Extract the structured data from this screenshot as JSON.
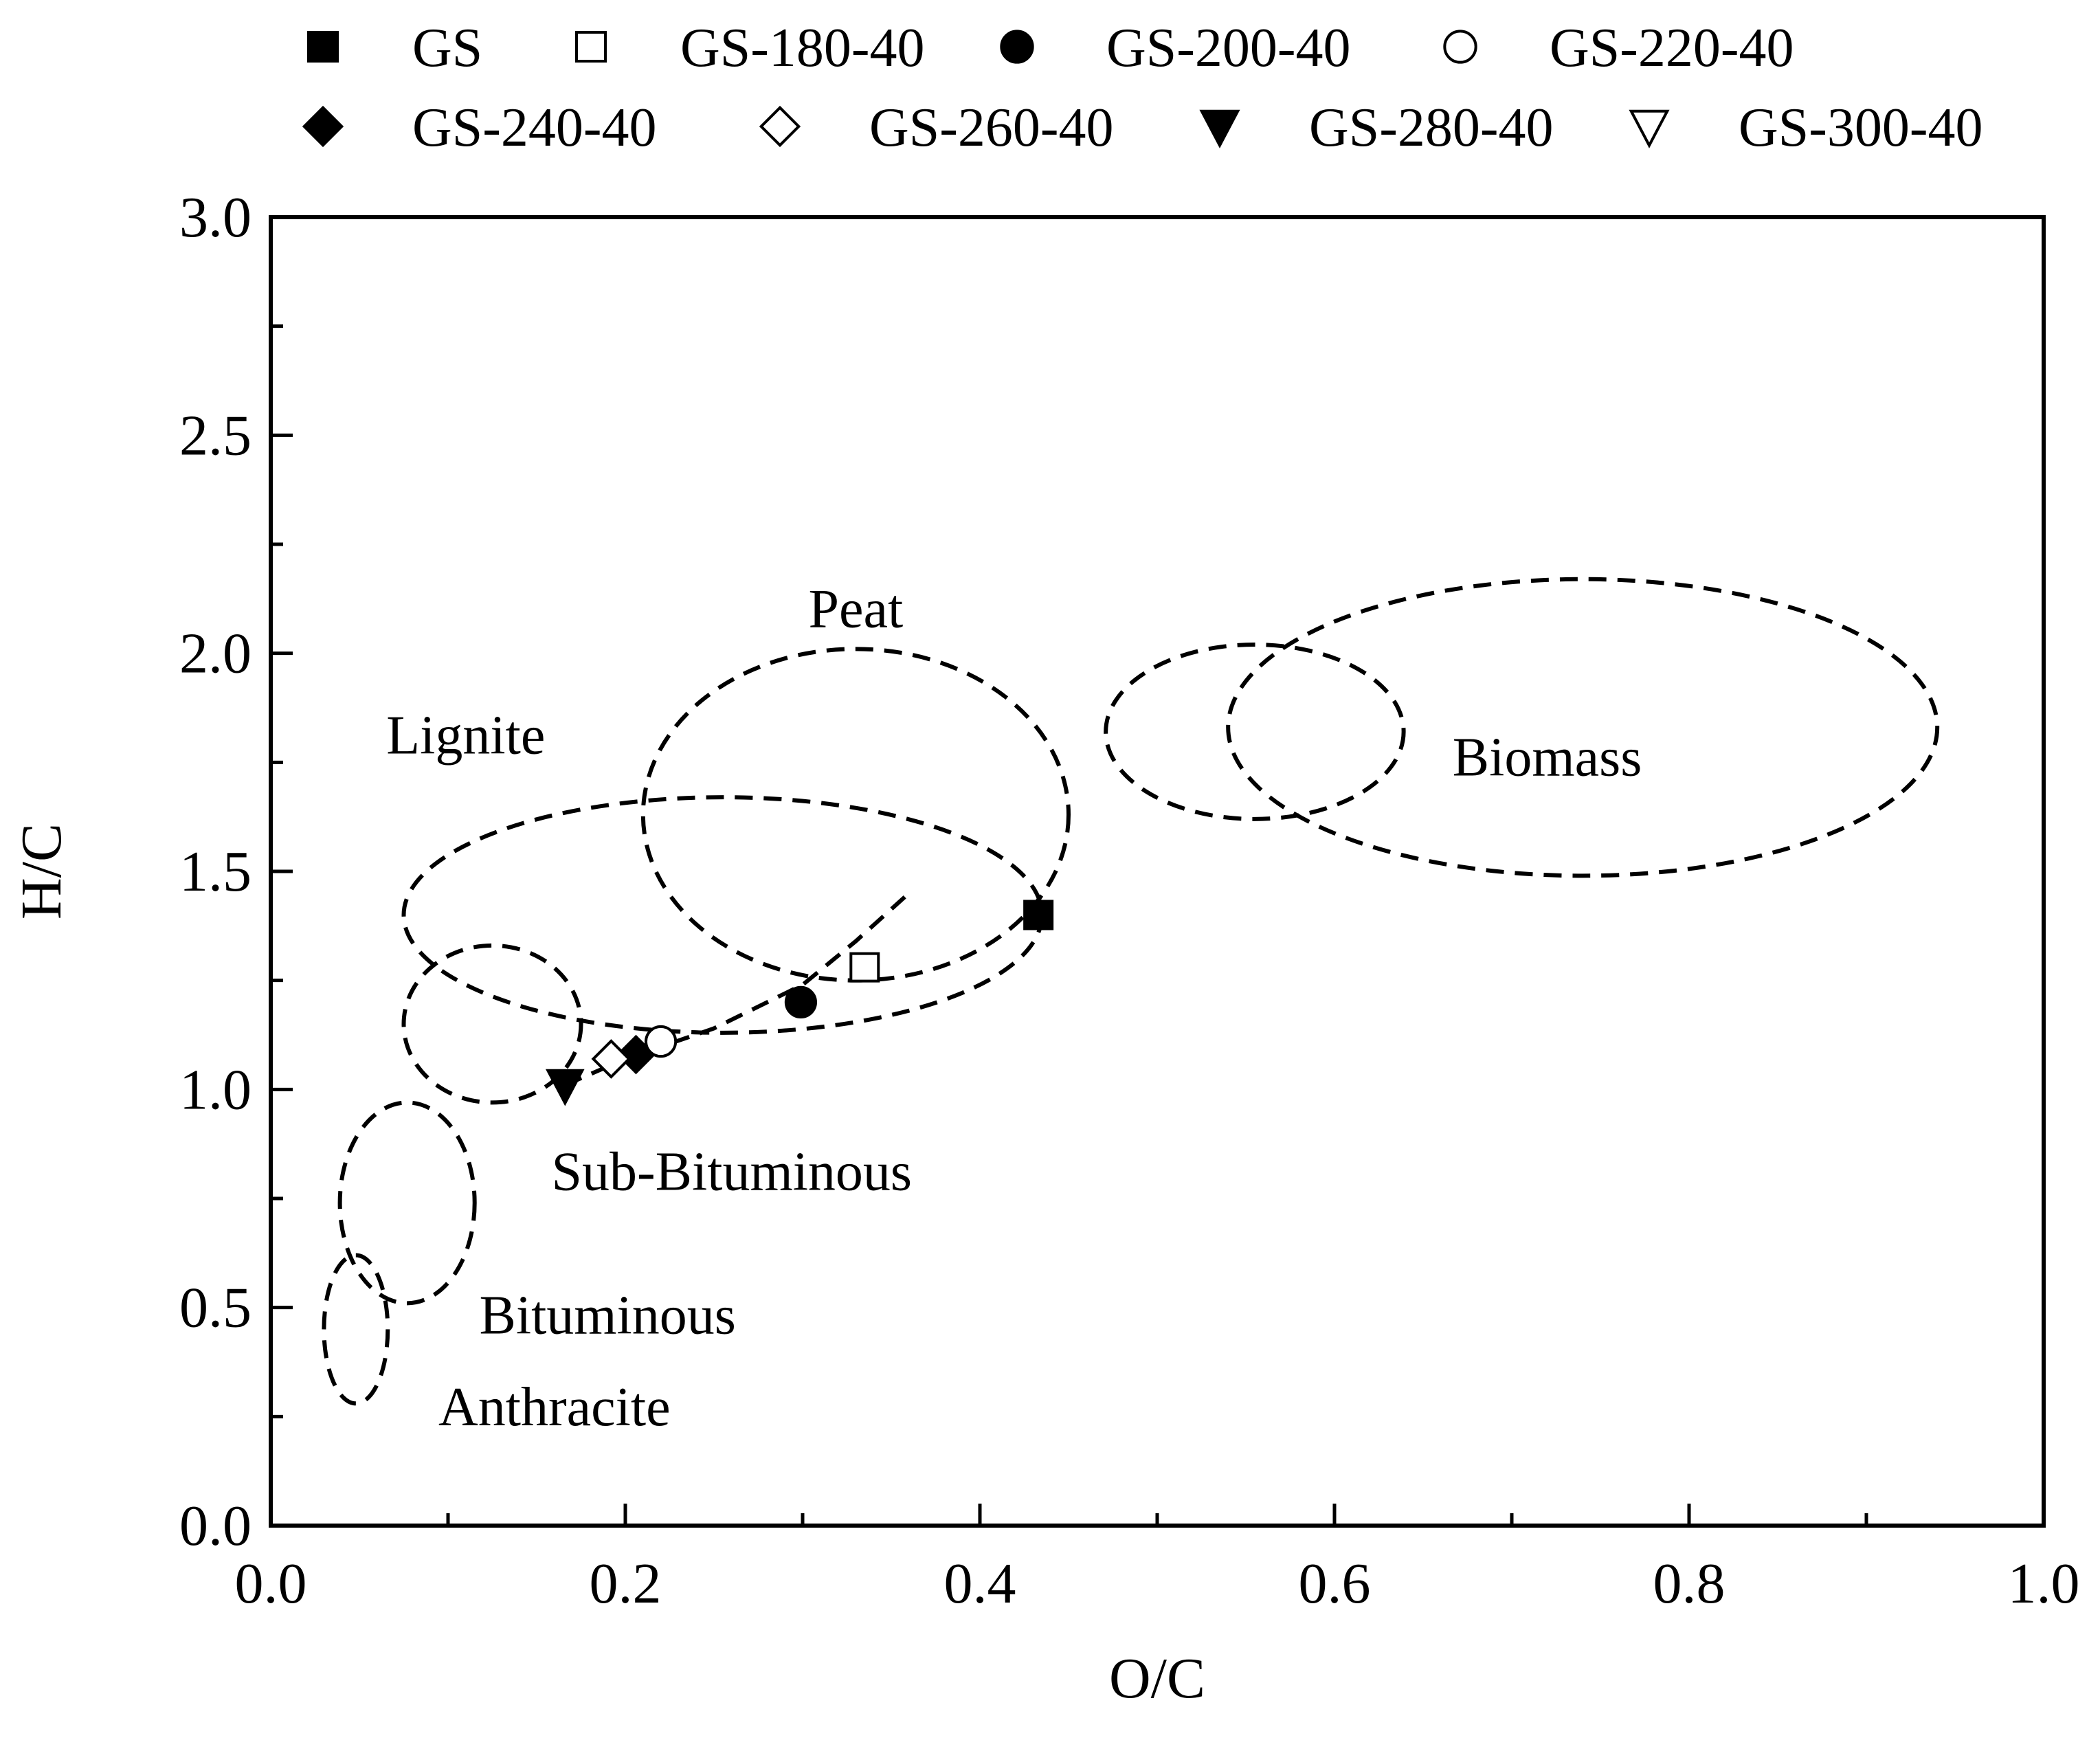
{
  "chart_data": {
    "type": "scatter",
    "title": "",
    "xlabel": "O/C",
    "ylabel": "H/C",
    "xlim": [
      0.0,
      1.0
    ],
    "ylim": [
      0.0,
      3.0
    ],
    "x_ticks": [
      0.0,
      0.2,
      0.4,
      0.6,
      0.8,
      1.0
    ],
    "x_tick_labels": [
      "0.0",
      "0.2",
      "0.4",
      "0.6",
      "0.8",
      "1.0"
    ],
    "y_ticks": [
      0.0,
      0.5,
      1.0,
      1.5,
      2.0,
      2.5,
      3.0
    ],
    "y_tick_labels": [
      "0.0",
      "0.5",
      "1.0",
      "1.5",
      "2.0",
      "2.5",
      "3.0"
    ],
    "grid": false,
    "legend_position": "top",
    "series": [
      {
        "name": "GS",
        "marker": "square-filled",
        "x": [
          0.433
        ],
        "y": [
          1.4
        ]
      },
      {
        "name": "GS-180-40",
        "marker": "square-open",
        "x": [
          0.335
        ],
        "y": [
          1.28
        ]
      },
      {
        "name": "GS-200-40",
        "marker": "circle-filled",
        "x": [
          0.299
        ],
        "y": [
          1.2
        ]
      },
      {
        "name": "GS-220-40",
        "marker": "circle-open",
        "x": [
          0.22
        ],
        "y": [
          1.11
        ]
      },
      {
        "name": "GS-240-40",
        "marker": "diamond-filled",
        "x": [
          0.206
        ],
        "y": [
          1.08
        ]
      },
      {
        "name": "GS-260-40",
        "marker": "diamond-open",
        "x": [
          0.192
        ],
        "y": [
          1.07
        ]
      },
      {
        "name": "GS-280-40",
        "marker": "triangle-down-filled",
        "x": [
          0.166
        ],
        "y": [
          1.01
        ]
      },
      {
        "name": "GS-300-40",
        "marker": "triangle-down-open",
        "x": [
          0.166
        ],
        "y": [
          1.01
        ]
      }
    ],
    "trend_curve": {
      "style": "dashed",
      "x": [
        0.166,
        0.2,
        0.25,
        0.3,
        0.33,
        0.36
      ],
      "y": [
        1.01,
        1.07,
        1.14,
        1.24,
        1.34,
        1.45
      ]
    },
    "regions": [
      {
        "label": "Biomass",
        "cx": 0.74,
        "cy": 1.83,
        "rx": 0.2,
        "ry": 0.34,
        "label_x": 0.72,
        "label_y": 1.72
      },
      {
        "label": "Peat",
        "cx": 0.33,
        "cy": 1.63,
        "rx": 0.12,
        "ry": 0.38,
        "label_x": 0.33,
        "label_y": 2.06
      },
      {
        "label": "Lignite",
        "cx": 0.255,
        "cy": 1.4,
        "rx": 0.18,
        "ry": 0.27,
        "label_x": 0.11,
        "label_y": 1.77
      },
      {
        "label": "Sub-Bituminous",
        "cx": 0.125,
        "cy": 1.15,
        "rx": 0.05,
        "ry": 0.18,
        "label_x": 0.26,
        "label_y": 0.77
      },
      {
        "label": "Bituminous",
        "cx": 0.077,
        "cy": 0.74,
        "rx": 0.038,
        "ry": 0.23,
        "label_x": 0.19,
        "label_y": 0.44
      },
      {
        "label": "Anthracite",
        "cx": 0.048,
        "cy": 0.45,
        "rx": 0.018,
        "ry": 0.17,
        "label_x": 0.16,
        "label_y": 0.23
      }
    ],
    "region_boundaries": [
      {
        "name": "peat-biomass-boundary",
        "cx": 0.555,
        "cy": 1.82,
        "rx": 0.084,
        "ry": 0.2
      }
    ]
  }
}
